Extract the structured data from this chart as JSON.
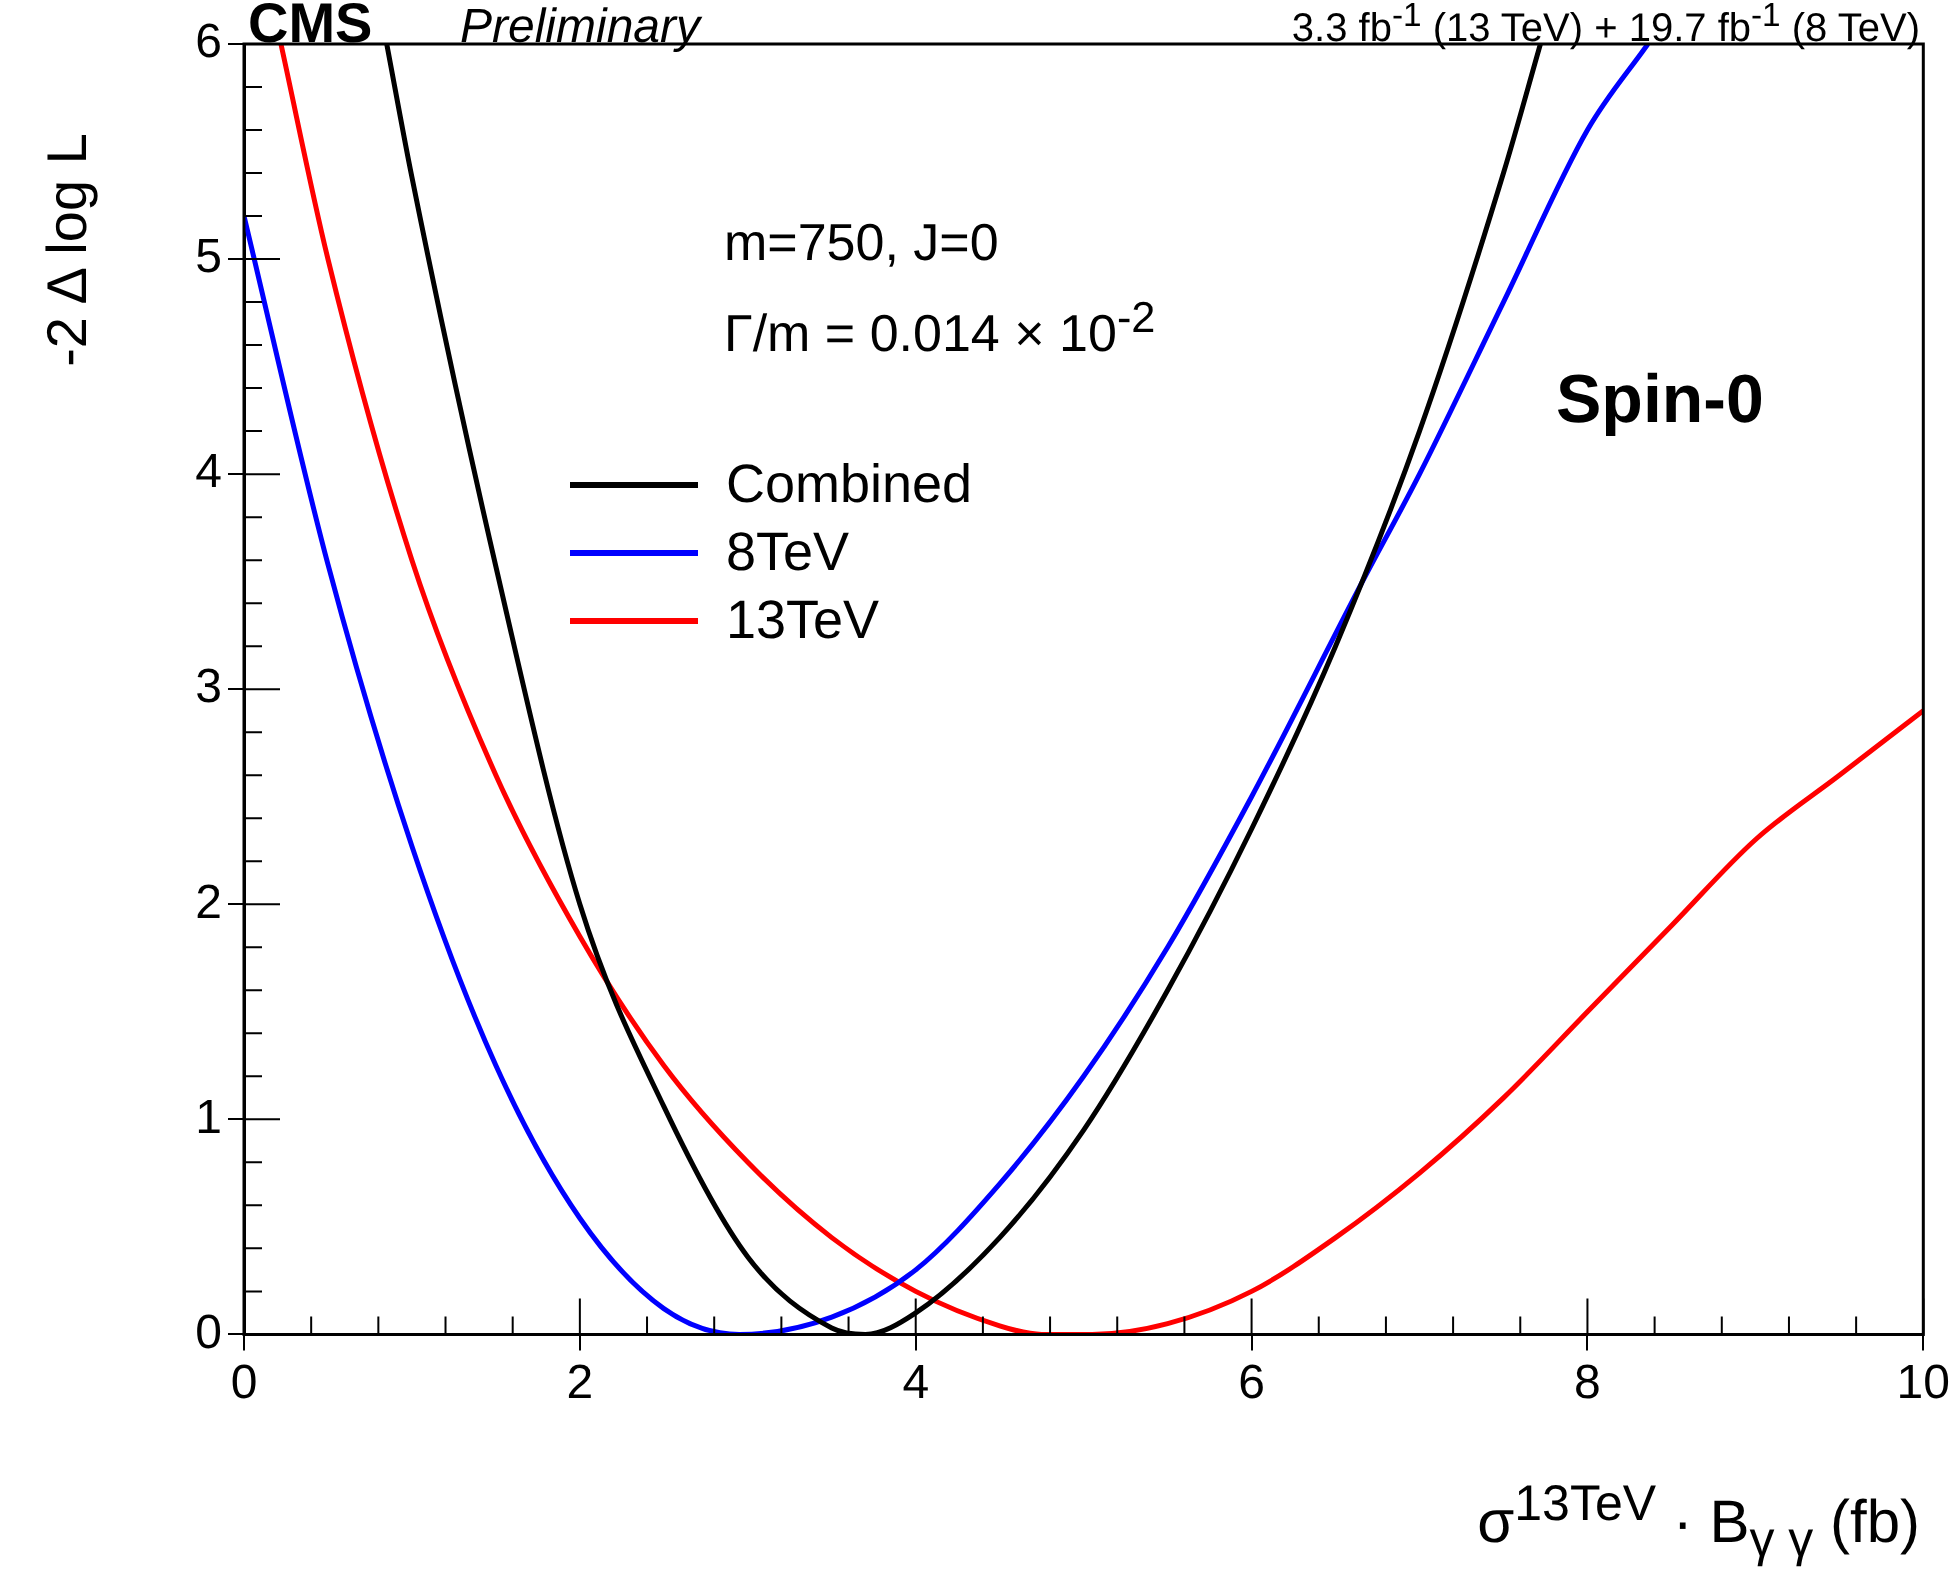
{
  "chart_data": {
    "type": "line",
    "title": "CMS",
    "subtitle": "Preliminary",
    "xlabel": "σ$^{13TeV}$ · B$_{γ γ}$ (fb)",
    "ylabel": "-2 Δ log L",
    "annotations": [
      "3.3 fb$^{-1}$ (13 TeV) + 19.7 fb$^{-1}$ (8 TeV)",
      "m=750, J=0",
      "Γ/m = 0.014 × 10$^{-2}$",
      "Spin-0"
    ],
    "xlim": [
      0,
      10
    ],
    "xticks": [
      0,
      2,
      4,
      6,
      8,
      10
    ],
    "ylim": [
      0,
      6
    ],
    "yticks": [
      0,
      1,
      2,
      3,
      4,
      5,
      6
    ],
    "grid": false,
    "legend": "top left",
    "marker": "none",
    "line_style": "solid",
    "series": [
      {
        "name": "Combined",
        "color": "#000000",
        "x": [
          0.85,
          1,
          1.5,
          2,
          2.5,
          3,
          3.5,
          3.7,
          4,
          4.5,
          5,
          5.5,
          6,
          6.5,
          7,
          7.5,
          7.72
        ],
        "values": [
          6,
          5.38,
          3.57,
          2.0,
          1.06,
          0.36,
          0.03,
          0,
          0.1,
          0.45,
          0.95,
          1.6,
          2.35,
          3.2,
          4.2,
          5.4,
          6
        ]
      },
      {
        "name": "8TeV",
        "color": "#0000ff",
        "x": [
          0,
          0.5,
          1,
          1.5,
          2,
          2.5,
          2.95,
          3.5,
          4,
          4.5,
          5,
          5.5,
          6,
          6.66,
          7,
          7.5,
          8,
          8.36
        ],
        "values": [
          5.2,
          3.58,
          2.27,
          1.25,
          0.54,
          0.12,
          0,
          0.08,
          0.3,
          0.7,
          1.2,
          1.8,
          2.5,
          3.5,
          4.0,
          4.8,
          5.6,
          6
        ]
      },
      {
        "name": "13TeV",
        "color": "#ff0000",
        "x": [
          0.22,
          0.5,
          1,
          1.5,
          2,
          2.5,
          3,
          3.5,
          4,
          4.5,
          4.75,
          5.05,
          5.5,
          6,
          6.5,
          7,
          7.5,
          8,
          8.5,
          9,
          9.5,
          10
        ],
        "values": [
          6,
          5.0,
          3.6,
          2.6,
          1.85,
          1.25,
          0.8,
          0.45,
          0.2,
          0.04,
          0,
          0,
          0.05,
          0.2,
          0.45,
          0.75,
          1.1,
          1.5,
          1.9,
          2.3,
          2.6,
          2.9
        ]
      }
    ]
  }
}
